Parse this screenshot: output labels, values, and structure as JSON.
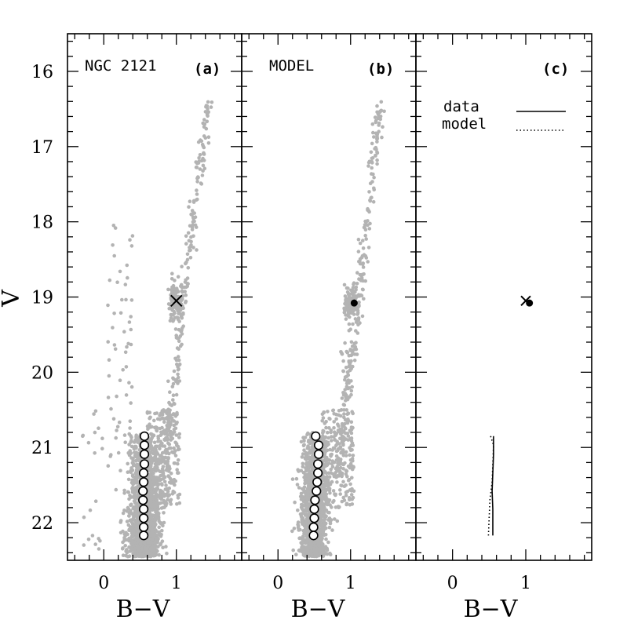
{
  "chart_data": {
    "type": "scatter",
    "ylabel": "V",
    "ylim": [
      22.5,
      15.5
    ],
    "y_inverted": true,
    "y_ticks": [
      16,
      17,
      18,
      19,
      20,
      21,
      22
    ],
    "x_ticks": [
      0,
      1
    ],
    "colors": {
      "stars": "#b3b3b3",
      "ink": "#000000"
    },
    "panels": [
      {
        "id": "a",
        "xlabel": "B−V",
        "xlim": [
          -0.5,
          1.9
        ],
        "title": "NGC 2121",
        "letter": "(a)",
        "clump_marker": {
          "symbol": "cross",
          "x": 1.0,
          "y": 19.05
        },
        "ridge_points": [
          {
            "x": 0.56,
            "y": 20.85
          },
          {
            "x": 0.56,
            "y": 20.97
          },
          {
            "x": 0.56,
            "y": 21.09
          },
          {
            "x": 0.56,
            "y": 21.22
          },
          {
            "x": 0.55,
            "y": 21.34
          },
          {
            "x": 0.55,
            "y": 21.46
          },
          {
            "x": 0.54,
            "y": 21.58
          },
          {
            "x": 0.54,
            "y": 21.7
          },
          {
            "x": 0.55,
            "y": 21.82
          },
          {
            "x": 0.55,
            "y": 21.94
          },
          {
            "x": 0.55,
            "y": 22.06
          },
          {
            "x": 0.55,
            "y": 22.17
          }
        ]
      },
      {
        "id": "b",
        "xlabel": "B−V",
        "xlim": [
          -0.5,
          1.9
        ],
        "title": "MODEL",
        "letter": "(b)",
        "clump_marker": {
          "symbol": "filled-circle",
          "x": 1.05,
          "y": 19.08
        },
        "ridge_points": [
          {
            "x": 0.52,
            "y": 20.85
          },
          {
            "x": 0.56,
            "y": 20.97
          },
          {
            "x": 0.56,
            "y": 21.09
          },
          {
            "x": 0.55,
            "y": 21.22
          },
          {
            "x": 0.55,
            "y": 21.34
          },
          {
            "x": 0.54,
            "y": 21.46
          },
          {
            "x": 0.53,
            "y": 21.58
          },
          {
            "x": 0.51,
            "y": 21.7
          },
          {
            "x": 0.5,
            "y": 21.82
          },
          {
            "x": 0.5,
            "y": 21.94
          },
          {
            "x": 0.49,
            "y": 22.06
          },
          {
            "x": 0.49,
            "y": 22.17
          }
        ]
      },
      {
        "id": "c",
        "xlabel": "B−V",
        "xlim": [
          -0.5,
          1.9
        ],
        "title": "",
        "letter": "(c)",
        "legend": {
          "data_label": "data",
          "model_label": "model",
          "placement": "top-right"
        },
        "data_cross": {
          "x": 1.0,
          "y": 19.05
        },
        "model_dot": {
          "x": 1.05,
          "y": 19.08
        },
        "data_line": [
          {
            "x": 0.56,
            "y": 20.85
          },
          {
            "x": 0.56,
            "y": 21.09
          },
          {
            "x": 0.55,
            "y": 21.34
          },
          {
            "x": 0.54,
            "y": 21.58
          },
          {
            "x": 0.55,
            "y": 21.82
          },
          {
            "x": 0.55,
            "y": 22.17
          }
        ],
        "model_line": [
          {
            "x": 0.52,
            "y": 20.85
          },
          {
            "x": 0.56,
            "y": 20.97
          },
          {
            "x": 0.55,
            "y": 21.22
          },
          {
            "x": 0.54,
            "y": 21.46
          },
          {
            "x": 0.51,
            "y": 21.7
          },
          {
            "x": 0.5,
            "y": 21.94
          },
          {
            "x": 0.49,
            "y": 22.17
          }
        ]
      }
    ]
  }
}
